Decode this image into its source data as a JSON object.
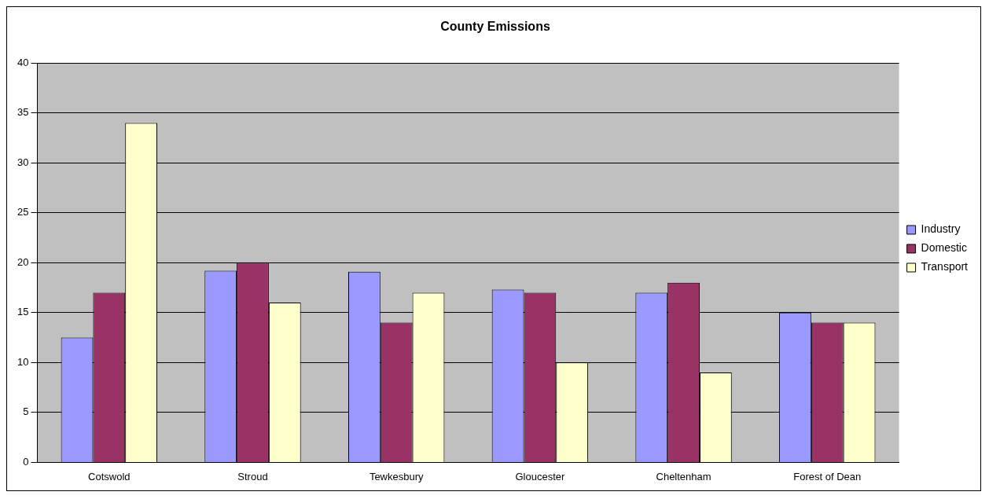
{
  "chart_data": {
    "type": "bar",
    "title": "County Emissions",
    "categories": [
      "Cotswold",
      "Stroud",
      "Tewkesbury",
      "Gloucester",
      "Cheltenham",
      "Forest of Dean"
    ],
    "series": [
      {
        "name": "Industry",
        "color": "#9999ff",
        "values": [
          12.5,
          19.2,
          19.1,
          17.3,
          17,
          15
        ]
      },
      {
        "name": "Domestic",
        "color": "#993366",
        "values": [
          17,
          20,
          14,
          17,
          18,
          14
        ]
      },
      {
        "name": "Transport",
        "color": "#ffffcc",
        "values": [
          34,
          16,
          17,
          10,
          9,
          14
        ]
      }
    ],
    "ylim": [
      0,
      40
    ],
    "yticks": [
      0,
      5,
      10,
      15,
      20,
      25,
      30,
      35,
      40
    ],
    "grid": "y",
    "legend": "right"
  }
}
